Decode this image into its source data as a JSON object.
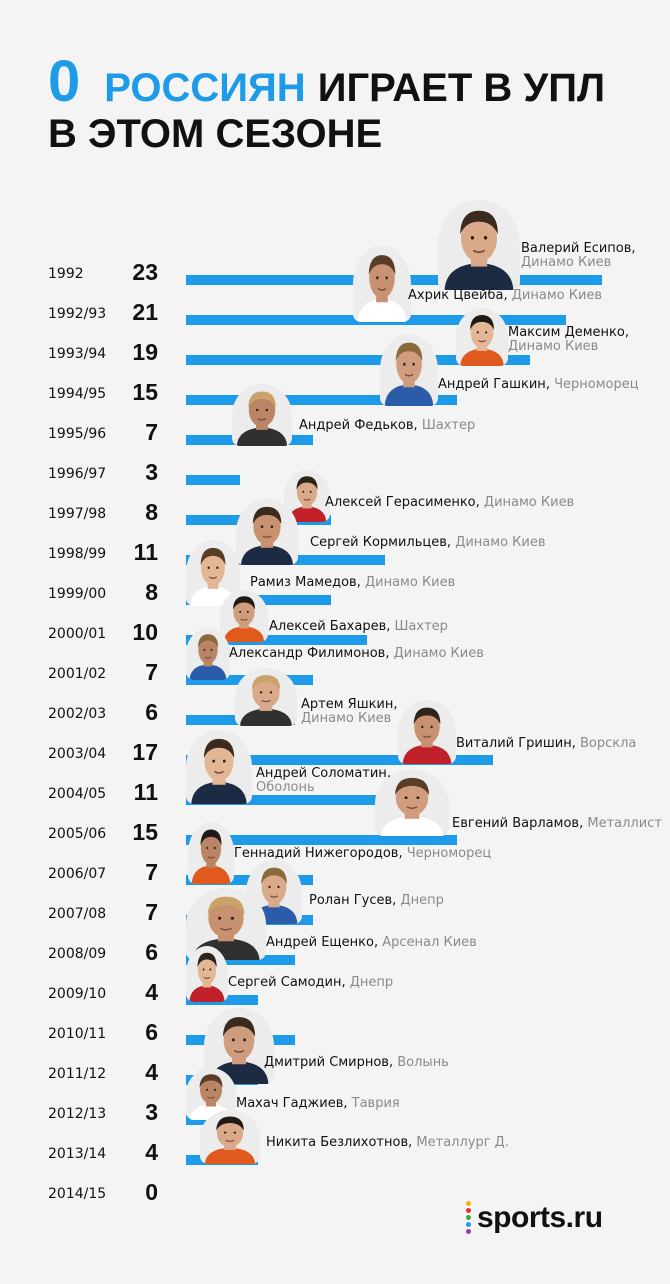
{
  "title": {
    "number": "0",
    "accent": "РОССИЯН",
    "rest": "ИГРАЕТ В УПЛ",
    "line2": "В ЭТОМ СЕЗОНЕ"
  },
  "colors": {
    "accent": "#1e9be8",
    "text": "#111111",
    "club": "#8a8a8a",
    "background": "#f4f4f4"
  },
  "chart_data": {
    "type": "bar",
    "orientation": "horizontal",
    "title": "0 россиян играет в УПЛ в этом сезоне",
    "categories": [
      "1992",
      "1992/93",
      "1993/94",
      "1994/95",
      "1995/96",
      "1996/97",
      "1997/98",
      "1998/99",
      "1999/00",
      "2000/01",
      "2001/02",
      "2002/03",
      "2003/04",
      "2004/05",
      "2005/06",
      "2006/07",
      "2007/08",
      "2008/09",
      "2009/10",
      "2010/11",
      "2011/12",
      "2012/13",
      "2013/14",
      "2014/15"
    ],
    "values": [
      23,
      21,
      19,
      15,
      7,
      3,
      8,
      11,
      8,
      10,
      7,
      6,
      17,
      11,
      15,
      7,
      7,
      6,
      4,
      6,
      4,
      3,
      4,
      0
    ],
    "xlim": [
      0,
      23
    ]
  },
  "players": [
    {
      "name": "Валерий Есипов",
      "club": "Динамо Киев",
      "row": 0
    },
    {
      "name": "Ахрик Цвейба",
      "club": "Динамо Киев",
      "row": 0
    },
    {
      "name": "Максим Деменко",
      "club": "Динамо Киев",
      "row": 1
    },
    {
      "name": "Андрей Гашкин",
      "club": "Черноморец",
      "row": 2
    },
    {
      "name": "Андрей Федьков",
      "club": "Шахтер",
      "row": 3
    },
    {
      "name": "Алексей Герасименко",
      "club": "Динамо Киев",
      "row": 5
    },
    {
      "name": "Сергей Кормильцев",
      "club": "Динамо Киев",
      "row": 6
    },
    {
      "name": "Рамиз Мамедов",
      "club": "Динамо Киев",
      "row": 7
    },
    {
      "name": "Алексей Бахарев",
      "club": "Шахтер",
      "row": 8
    },
    {
      "name": "Александр Филимонов",
      "club": "Динамо Киев",
      "row": 9
    },
    {
      "name": "Артем Яшкин",
      "club": "Динамо Киев",
      "row": 10
    },
    {
      "name": "Виталий Гришин",
      "club": "Ворскла",
      "row": 11
    },
    {
      "name": "Андрей Соломатин",
      "club": "Оболонь",
      "row": 12
    },
    {
      "name": "Евгений Варламов",
      "club": "Металлист",
      "row": 13
    },
    {
      "name": "Геннадий Нижегородов",
      "club": "Черноморец",
      "row": 14
    },
    {
      "name": "Ролан Гусев",
      "club": "Днепр",
      "row": 15
    },
    {
      "name": "Андрей Ещенко",
      "club": "Арсенал Киев",
      "row": 16
    },
    {
      "name": "Сергей Самодин",
      "club": "Днепр",
      "row": 17
    },
    {
      "name": "Дмитрий Смирнов",
      "club": "Волынь",
      "row": 19
    },
    {
      "name": "Махач Гаджиев",
      "club": "Таврия",
      "row": 20
    },
    {
      "name": "Никита Безлихотнов",
      "club": "Металлург Д.",
      "row": 21
    }
  ],
  "logo": {
    "text": "sports.ru",
    "dot_colors": [
      "#f7b500",
      "#e8312e",
      "#3aa845",
      "#1e9be8",
      "#8e44ad"
    ]
  }
}
